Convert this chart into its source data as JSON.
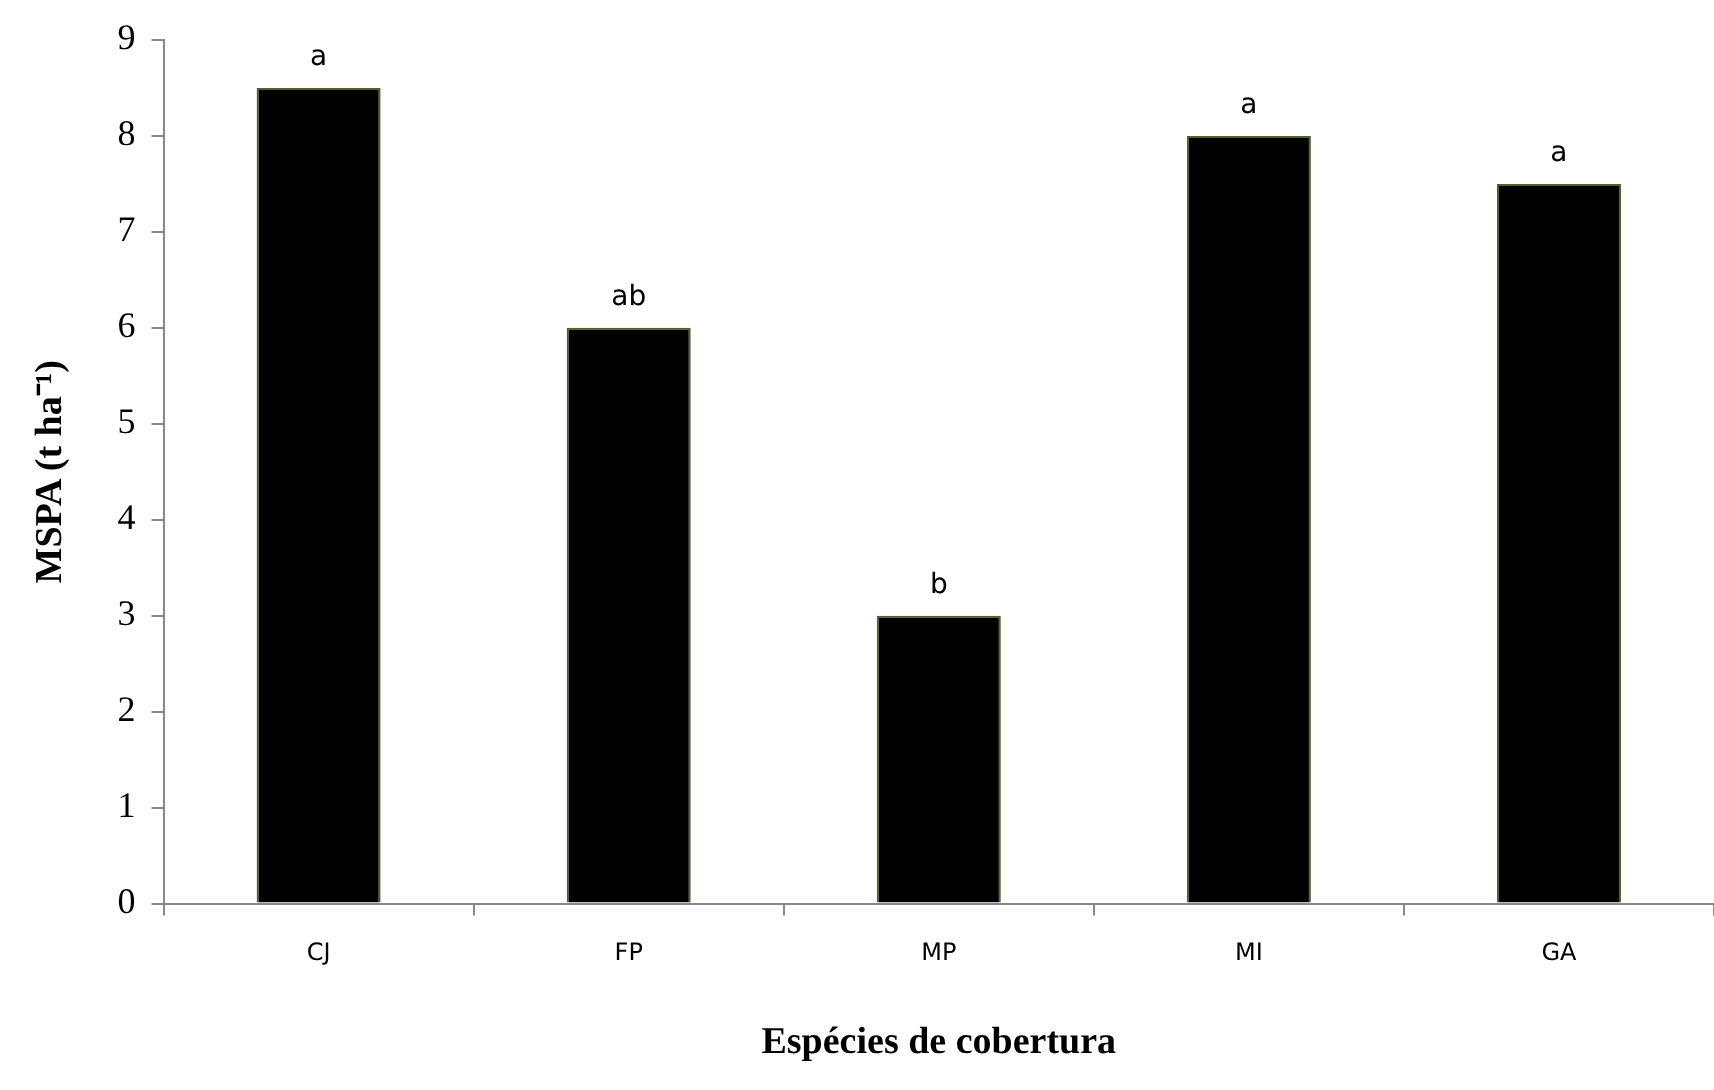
{
  "chart_data": {
    "type": "bar",
    "xlabel": "Espécies de cobertura",
    "ylabel": "MSPA (t ha⁻¹)",
    "categories": [
      "CJ",
      "FP",
      "MP",
      "MI",
      "GA"
    ],
    "values": [
      8.5,
      6.0,
      3.0,
      8.0,
      7.5
    ],
    "color": "#000000",
    "ylim": [
      0,
      9
    ],
    "yticks": [
      0,
      1,
      2,
      3,
      4,
      5,
      6,
      7,
      8,
      9
    ],
    "grid": false,
    "legend": false,
    "annotations": [
      {
        "text": "a",
        "x": "CJ",
        "y": 8.5
      },
      {
        "text": "ab",
        "x": "FP",
        "y": 6.0
      },
      {
        "text": "b",
        "x": "MP",
        "y": 3.0
      },
      {
        "text": "a",
        "x": "MI",
        "y": 8.0
      },
      {
        "text": "a",
        "x": "GA",
        "y": 7.5
      }
    ]
  }
}
